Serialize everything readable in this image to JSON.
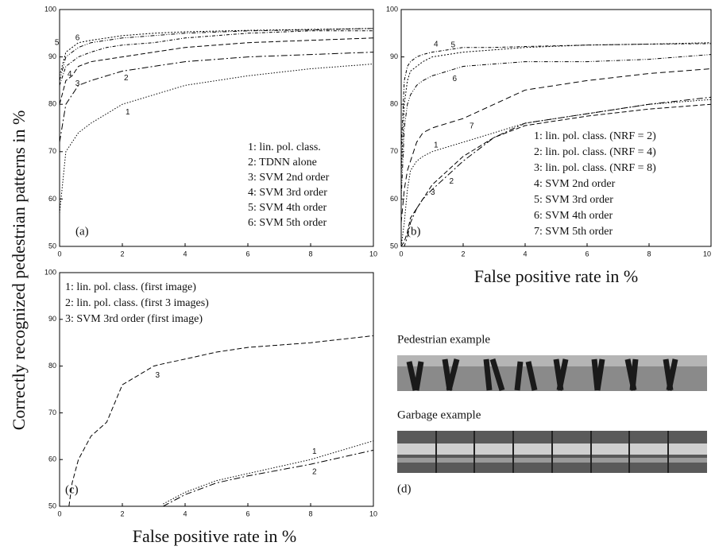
{
  "figure": {
    "ylabel": "Correctly recognized pedestrian patterns in %",
    "panel_d": {
      "pedestrian": "Pedestrian example",
      "garbage": "Garbage example",
      "panel_label": "(d)"
    }
  },
  "chart_data": [
    {
      "type": "line",
      "panel_label": "(a)",
      "x": [
        0,
        0.2,
        0.4,
        0.6,
        1,
        1.5,
        2,
        3,
        4,
        6,
        8,
        10
      ],
      "xlim": [
        0,
        10
      ],
      "ylim": [
        50,
        100
      ],
      "xticks": [
        0,
        2,
        4,
        6,
        8,
        10
      ],
      "yticks": [
        50,
        60,
        70,
        80,
        90,
        100
      ],
      "grid": false,
      "series": [
        {
          "name": "1: lin. pol. class.",
          "label": "1",
          "color": "#000",
          "values": [
            57,
            70,
            72,
            74,
            76,
            78,
            80,
            82,
            84,
            86,
            87.5,
            88.5
          ]
        },
        {
          "name": "2: TDNN alone",
          "label": "2",
          "color": "#000",
          "values": [
            72,
            80,
            82,
            84,
            85,
            86,
            87,
            88,
            89,
            90,
            90.5,
            91
          ]
        },
        {
          "name": "3: SVM 2nd order",
          "label": "3",
          "color": "#000",
          "values": [
            80,
            85,
            86,
            88,
            89,
            89.5,
            90,
            91,
            92,
            93,
            93.5,
            94
          ]
        },
        {
          "name": "4: SVM 3rd order",
          "label": "4",
          "color": "#000",
          "values": [
            84,
            88,
            89,
            90,
            91,
            92,
            92.5,
            93,
            94,
            95,
            95.5,
            95.5
          ]
        },
        {
          "name": "5: SVM 4th order",
          "label": "5",
          "color": "#000",
          "values": [
            86,
            91,
            92,
            93,
            93.5,
            94,
            94.5,
            95,
            95.3,
            95.6,
            95.8,
            96
          ]
        },
        {
          "name": "6: SVM 5th order",
          "label": "6",
          "color": "#000",
          "values": [
            85,
            90,
            91,
            92,
            93,
            93.5,
            94,
            94.5,
            95,
            95.5,
            95.7,
            96
          ]
        }
      ]
    },
    {
      "type": "line",
      "panel_label": "(b)",
      "xlabel": "False positive rate in %",
      "x": [
        0,
        0.1,
        0.2,
        0.3,
        0.5,
        0.7,
        1,
        1.5,
        2,
        3,
        4,
        6,
        8,
        10
      ],
      "xlim": [
        0,
        10
      ],
      "ylim": [
        50,
        100
      ],
      "xticks": [
        0,
        2,
        4,
        6,
        8,
        10
      ],
      "yticks": [
        50,
        60,
        70,
        80,
        90,
        100
      ],
      "grid": false,
      "series": [
        {
          "name": "1: lin. pol. class. (NRF = 2)",
          "label": "1",
          "color": "#000",
          "values": [
            50,
            55,
            62,
            66,
            68,
            69,
            70,
            71,
            72,
            74,
            76,
            78,
            80,
            81
          ]
        },
        {
          "name": "2: lin. pol. class. (NRF = 4)",
          "label": "2",
          "color": "#000",
          "values": [
            50,
            50,
            52,
            55,
            58,
            60,
            62,
            65,
            68,
            73,
            76,
            78,
            80,
            81.5
          ]
        },
        {
          "name": "3: lin. pol. class. (NRF = 8)",
          "label": "3",
          "color": "#000",
          "values": [
            50,
            51,
            53,
            56,
            58,
            60,
            63,
            66,
            69,
            73,
            75.5,
            77.5,
            79,
            80
          ]
        },
        {
          "name": "4: SVM 2nd order",
          "label": "4",
          "color": "#000",
          "values": [
            70,
            85,
            88,
            89,
            90,
            90.5,
            91,
            91.5,
            92,
            92,
            92.2,
            92.5,
            92.7,
            92.8
          ]
        },
        {
          "name": "5: SVM 3rd order",
          "label": "5",
          "color": "#000",
          "values": [
            65,
            80,
            85,
            87,
            88,
            89,
            90,
            90.5,
            91,
            91.5,
            92,
            92.5,
            92.7,
            93
          ]
        },
        {
          "name": "6: SVM 4th order",
          "label": "6",
          "color": "#000",
          "values": [
            60,
            75,
            80,
            82,
            84,
            85,
            86,
            87,
            88,
            88.5,
            89,
            89,
            89.5,
            90.5
          ]
        },
        {
          "name": "7: SVM 5th order",
          "label": "7",
          "color": "#000",
          "values": [
            55,
            62,
            66,
            68,
            72,
            74,
            75,
            76,
            77,
            80,
            83,
            85,
            86.5,
            87.5
          ]
        }
      ]
    },
    {
      "type": "line",
      "panel_label": "(c)",
      "xlabel": "False positive rate in %",
      "x": [
        0.3,
        0.4,
        0.6,
        1,
        1.5,
        2,
        2.5,
        3,
        3.3,
        4,
        5,
        6,
        8,
        10
      ],
      "xlim": [
        0,
        10
      ],
      "ylim": [
        50,
        100
      ],
      "xticks": [
        0,
        2,
        4,
        6,
        8,
        10
      ],
      "yticks": [
        50,
        60,
        70,
        80,
        90,
        100
      ],
      "grid": false,
      "series": [
        {
          "name": "1: lin. pol. class. (first image)",
          "label": "1",
          "color": "#000",
          "values": [
            null,
            null,
            null,
            null,
            null,
            null,
            null,
            null,
            50.5,
            53,
            55.5,
            57,
            60,
            64
          ]
        },
        {
          "name": "2: lin. pol. class. (first 3 images)",
          "label": "2",
          "color": "#000",
          "values": [
            null,
            null,
            null,
            null,
            null,
            null,
            null,
            null,
            50,
            52.5,
            55,
            56.5,
            59,
            62
          ]
        },
        {
          "name": "3: SVM 3rd order (first image)",
          "label": "3",
          "color": "#000",
          "values": [
            50,
            55,
            60,
            65,
            68,
            76,
            78,
            80,
            80.5,
            81.5,
            83,
            84,
            85,
            86.5
          ]
        }
      ]
    }
  ]
}
